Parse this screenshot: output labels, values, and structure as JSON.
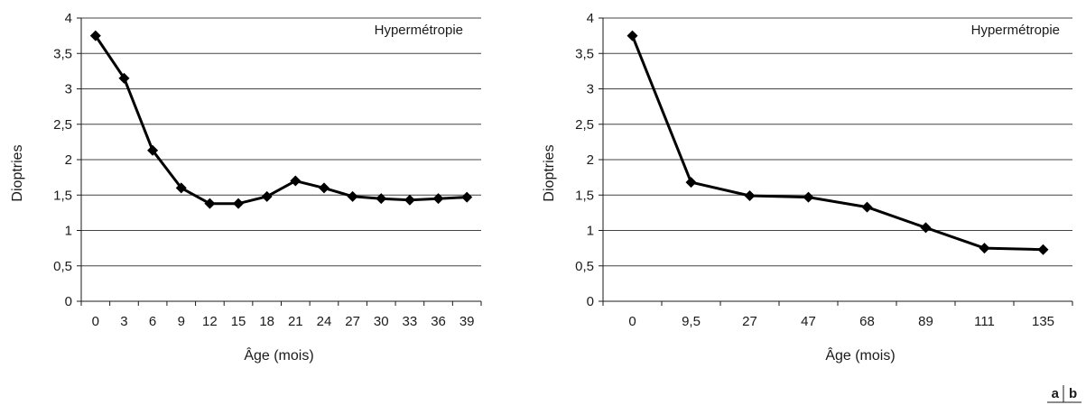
{
  "chart_data": [
    {
      "type": "line",
      "title": "Hypermétropie",
      "xlabel": "Âge (mois)",
      "ylabel": "Dioptries",
      "categories": [
        "0",
        "3",
        "6",
        "9",
        "12",
        "15",
        "18",
        "21",
        "24",
        "27",
        "30",
        "33",
        "36",
        "39"
      ],
      "series": [
        {
          "values": [
            3.75,
            3.15,
            2.13,
            1.6,
            1.38,
            1.38,
            1.48,
            1.7,
            1.6,
            1.48,
            1.45,
            1.43,
            1.45,
            1.47
          ]
        }
      ],
      "ylim": [
        0,
        4
      ],
      "yticks": [
        "0",
        "0,5",
        "1",
        "1,5",
        "2",
        "2,5",
        "3",
        "3,5",
        "4"
      ],
      "grid": true,
      "marker": "diamond",
      "line_color": "#000000",
      "grid_color": "#444444"
    },
    {
      "type": "line",
      "title": "Hypermétropie",
      "xlabel": "Âge (mois)",
      "ylabel": "Dioptries",
      "categories": [
        "0",
        "9,5",
        "27",
        "47",
        "68",
        "89",
        "111",
        "135"
      ],
      "series": [
        {
          "values": [
            3.75,
            1.68,
            1.49,
            1.47,
            1.33,
            1.04,
            0.75,
            0.73
          ]
        }
      ],
      "ylim": [
        0,
        4
      ],
      "yticks": [
        "0",
        "0,5",
        "1",
        "1,5",
        "2",
        "2,5",
        "3",
        "3,5",
        "4"
      ],
      "grid": true,
      "marker": "diamond",
      "line_color": "#000000",
      "grid_color": "#444444"
    }
  ],
  "panel_labels": {
    "a": "a",
    "b": "b"
  }
}
